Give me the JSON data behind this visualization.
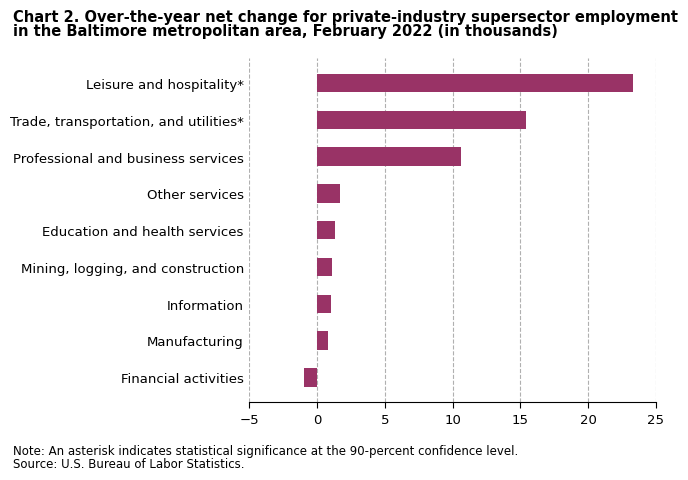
{
  "title_line1": "Chart 2. Over-the-year net change for private-industry supersector employment",
  "title_line2": "in the Baltimore metropolitan area, February 2022 (in thousands)",
  "categories": [
    "Financial activities",
    "Manufacturing",
    "Information",
    "Mining, logging, and construction",
    "Education and health services",
    "Other services",
    "Professional and business services",
    "Trade, transportation, and utilities*",
    "Leisure and hospitality*"
  ],
  "values": [
    -1.0,
    0.8,
    1.0,
    1.1,
    1.3,
    1.7,
    10.6,
    15.4,
    23.3
  ],
  "bar_color": "#993366",
  "xlim": [
    -5,
    25
  ],
  "xticks": [
    -5,
    0,
    5,
    10,
    15,
    20,
    25
  ],
  "note_line1": "Note: An asterisk indicates statistical significance at the 90-percent confidence level.",
  "note_line2": "Source: U.S. Bureau of Labor Statistics.",
  "background_color": "#ffffff",
  "grid_color": "#b0b0b0",
  "title_fontsize": 10.5,
  "label_fontsize": 9.5,
  "tick_fontsize": 9.5,
  "note_fontsize": 8.5,
  "bar_height": 0.5
}
